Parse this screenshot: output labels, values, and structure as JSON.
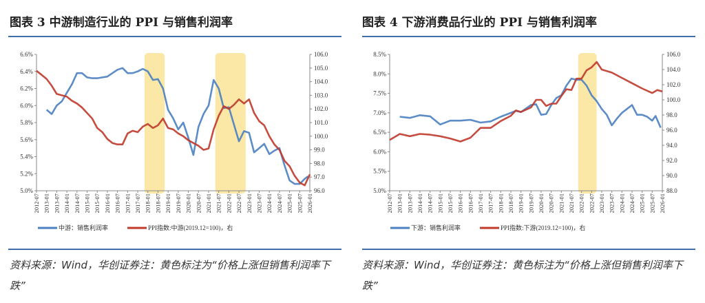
{
  "panels": [
    {
      "title": "图表 3  中游制造行业的 PPI 与销售利润率",
      "source": "资料来源：Wind，华创证券注：黄色标注为“价格上涨但销售利润率下跌”"
    },
    {
      "title": "图表 4  下游消费品行业的 PPI 与销售利润率",
      "source": "资料来源：Wind，华创证券注：黄色标注为“价格上涨但销售利润率下跌”"
    }
  ],
  "chart_data": [
    {
      "type": "line",
      "x_range": [
        "2012-07",
        "2026-01"
      ],
      "x_ticks": [
        "2012-07",
        "2013-01",
        "2013-07",
        "2014-01",
        "2014-07",
        "2015-01",
        "2015-07",
        "2016-01",
        "2016-07",
        "2017-01",
        "2017-07",
        "2018-01",
        "2018-07",
        "2019-01",
        "2019-07",
        "2020-01",
        "2020-07",
        "2021-01",
        "2021-07",
        "2022-01",
        "2022-07",
        "2023-01",
        "2023-07",
        "2024-01",
        "2024-07",
        "2025-01",
        "2025-07",
        "2026-01"
      ],
      "y_left": {
        "min": 5.0,
        "max": 6.6,
        "ticks": [
          "5.0%",
          "5.2%",
          "5.4%",
          "5.6%",
          "5.8%",
          "6.0%",
          "6.2%",
          "6.4%",
          "6.6%"
        ]
      },
      "y_right": {
        "min": 96.0,
        "max": 106.0,
        "ticks": [
          "96.0",
          "97.0",
          "98.0",
          "99.0",
          "100.0",
          "101.0",
          "102.0",
          "103.0",
          "104.0",
          "105.0",
          "106.0"
        ]
      },
      "highlights": [
        {
          "from": "2017-11",
          "to": "2018-11"
        },
        {
          "from": "2021-05",
          "to": "2022-11"
        }
      ],
      "highlight_color": "#fce8a6",
      "grid": false,
      "legend_position": "bottom",
      "series": [
        {
          "name": "中游：销售利润率",
          "axis": "left",
          "color": "#4a7fc1",
          "x": [
            "2013-01",
            "2013-04",
            "2013-07",
            "2013-10",
            "2014-01",
            "2014-04",
            "2014-07",
            "2014-10",
            "2015-01",
            "2015-04",
            "2015-07",
            "2015-10",
            "2016-01",
            "2016-04",
            "2016-07",
            "2016-10",
            "2017-01",
            "2017-04",
            "2017-07",
            "2017-10",
            "2018-01",
            "2018-04",
            "2018-07",
            "2018-10",
            "2019-01",
            "2019-04",
            "2019-07",
            "2019-10",
            "2020-01",
            "2020-04",
            "2020-07",
            "2020-10",
            "2021-01",
            "2021-04",
            "2021-07",
            "2021-10",
            "2022-01",
            "2022-04",
            "2022-07",
            "2022-10",
            "2023-01",
            "2023-04",
            "2023-07",
            "2023-10",
            "2024-01",
            "2024-04",
            "2024-07",
            "2024-10",
            "2025-01",
            "2025-04",
            "2025-07",
            "2025-10",
            "2025-12"
          ],
          "y": [
            5.95,
            5.9,
            6.0,
            6.05,
            6.15,
            6.25,
            6.38,
            6.38,
            6.33,
            6.32,
            6.32,
            6.33,
            6.34,
            6.38,
            6.42,
            6.44,
            6.38,
            6.38,
            6.4,
            6.43,
            6.4,
            6.3,
            6.31,
            6.2,
            5.95,
            5.85,
            5.72,
            5.8,
            5.62,
            5.42,
            5.75,
            5.9,
            6.0,
            6.3,
            6.2,
            5.97,
            5.98,
            5.78,
            5.58,
            5.7,
            5.68,
            5.45,
            5.5,
            5.55,
            5.43,
            5.47,
            5.5,
            5.3,
            5.12,
            5.08,
            5.08,
            5.14,
            5.17
          ]
        },
        {
          "name": "PPI指数:中游(2019.12=100)，右",
          "axis": "right",
          "color": "#c0392b",
          "x": [
            "2012-07",
            "2012-10",
            "2013-01",
            "2013-04",
            "2013-07",
            "2013-10",
            "2014-01",
            "2014-04",
            "2014-07",
            "2014-10",
            "2015-01",
            "2015-04",
            "2015-07",
            "2015-10",
            "2016-01",
            "2016-04",
            "2016-07",
            "2016-10",
            "2017-01",
            "2017-04",
            "2017-07",
            "2017-10",
            "2018-01",
            "2018-04",
            "2018-07",
            "2018-10",
            "2019-01",
            "2019-04",
            "2019-07",
            "2019-10",
            "2020-01",
            "2020-04",
            "2020-07",
            "2020-10",
            "2021-01",
            "2021-04",
            "2021-07",
            "2021-10",
            "2022-01",
            "2022-04",
            "2022-07",
            "2022-10",
            "2023-01",
            "2023-04",
            "2023-07",
            "2023-10",
            "2024-01",
            "2024-04",
            "2024-07",
            "2024-10",
            "2025-01",
            "2025-04",
            "2025-07",
            "2025-10",
            "2026-01"
          ],
          "y": [
            104.8,
            104.5,
            104.2,
            103.7,
            103.1,
            103.0,
            102.9,
            102.6,
            102.4,
            102.1,
            101.7,
            101.3,
            100.6,
            100.3,
            99.8,
            99.5,
            99.4,
            99.4,
            100.2,
            100.4,
            100.3,
            100.7,
            100.9,
            100.6,
            100.8,
            101.3,
            100.6,
            100.5,
            100.2,
            100.0,
            99.7,
            99.5,
            99.3,
            99.0,
            99.1,
            100.5,
            101.5,
            102.2,
            102.0,
            102.3,
            102.7,
            102.4,
            102.7,
            101.7,
            101.1,
            100.8,
            100.0,
            99.4,
            99.0,
            98.2,
            97.8,
            97.1,
            96.6,
            96.4,
            97.2
          ]
        }
      ]
    },
    {
      "type": "line",
      "x_range": [
        "2012-07",
        "2026-01"
      ],
      "x_ticks": [
        "2012-07",
        "2013-01",
        "2013-07",
        "2014-01",
        "2014-07",
        "2015-01",
        "2015-07",
        "2016-01",
        "2016-07",
        "2017-01",
        "2017-07",
        "2018-01",
        "2018-07",
        "2019-01",
        "2019-07",
        "2020-01",
        "2020-07",
        "2021-01",
        "2021-07",
        "2022-01",
        "2022-07",
        "2023-01",
        "2023-07",
        "2024-01",
        "2024-07",
        "2025-01",
        "2025-07",
        "2026-01"
      ],
      "y_left": {
        "min": 5.0,
        "max": 8.5,
        "ticks": [
          "5.0%",
          "5.5%",
          "6.0%",
          "6.5%",
          "7.0%",
          "7.5%",
          "8.0%",
          "8.5%"
        ]
      },
      "y_right": {
        "min": 88.0,
        "max": 106.0,
        "ticks": [
          "88.0",
          "90.0",
          "92.0",
          "94.0",
          "96.0",
          "98.0",
          "100.0",
          "102.0",
          "104.0",
          "106.0"
        ]
      },
      "highlights": [
        {
          "from": "2021-11",
          "to": "2022-10"
        }
      ],
      "highlight_color": "#fce8a6",
      "grid": false,
      "legend_position": "bottom",
      "series": [
        {
          "name": "下游：销售利润率",
          "axis": "left",
          "color": "#4a7fc1",
          "x": [
            "2013-01",
            "2013-07",
            "2014-01",
            "2014-07",
            "2015-01",
            "2015-07",
            "2016-01",
            "2016-07",
            "2017-01",
            "2017-07",
            "2018-01",
            "2018-07",
            "2018-10",
            "2019-01",
            "2019-07",
            "2019-10",
            "2020-01",
            "2020-04",
            "2020-07",
            "2020-10",
            "2021-01",
            "2021-04",
            "2021-07",
            "2021-10",
            "2022-01",
            "2022-04",
            "2022-07",
            "2022-10",
            "2023-01",
            "2023-04",
            "2023-07",
            "2023-10",
            "2024-01",
            "2024-04",
            "2024-07",
            "2024-10",
            "2025-01",
            "2025-04",
            "2025-07",
            "2025-09",
            "2025-12"
          ],
          "y": [
            6.9,
            6.87,
            6.94,
            6.91,
            6.7,
            6.8,
            6.8,
            6.82,
            6.75,
            6.78,
            6.9,
            7.0,
            7.05,
            7.02,
            7.2,
            7.22,
            6.95,
            6.97,
            7.2,
            7.38,
            7.45,
            7.7,
            7.88,
            7.85,
            7.85,
            7.7,
            7.45,
            7.3,
            7.1,
            6.95,
            6.68,
            6.85,
            7.0,
            7.1,
            7.2,
            6.95,
            6.95,
            6.9,
            6.8,
            6.92,
            6.62
          ]
        },
        {
          "name": "PPI指数:下游(2019.12=100)，右",
          "axis": "right",
          "color": "#c0392b",
          "x": [
            "2012-07",
            "2013-01",
            "2013-07",
            "2014-01",
            "2014-07",
            "2015-01",
            "2015-07",
            "2016-01",
            "2016-07",
            "2017-01",
            "2017-07",
            "2018-01",
            "2018-07",
            "2018-10",
            "2019-01",
            "2019-07",
            "2019-10",
            "2020-01",
            "2020-04",
            "2020-07",
            "2020-10",
            "2021-01",
            "2021-04",
            "2021-07",
            "2021-10",
            "2022-01",
            "2022-04",
            "2022-07",
            "2022-10",
            "2023-01",
            "2023-07",
            "2024-01",
            "2024-07",
            "2025-01",
            "2025-07",
            "2025-10",
            "2026-01"
          ],
          "y": [
            94.7,
            95.5,
            95.2,
            95.5,
            95.4,
            95.2,
            94.9,
            94.5,
            95.0,
            96.3,
            96.3,
            97.2,
            97.9,
            98.6,
            98.4,
            99.0,
            100.0,
            100.0,
            99.2,
            99.5,
            99.5,
            100.5,
            101.4,
            101.3,
            102.8,
            102.8,
            103.9,
            104.3,
            105.0,
            104.0,
            103.6,
            102.9,
            102.2,
            101.5,
            100.9,
            101.3,
            101.1
          ]
        }
      ]
    }
  ]
}
